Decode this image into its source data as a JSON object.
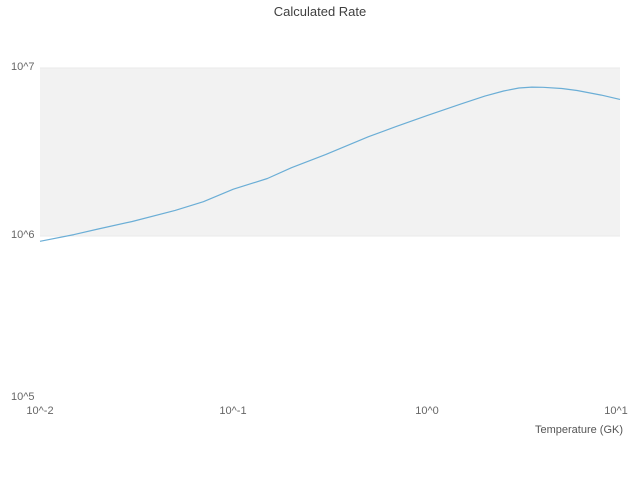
{
  "chart_data": {
    "type": "line",
    "title": "Calculated Rate",
    "xlabel": "Temperature (GK)",
    "ylabel": "",
    "x_scale": "log",
    "y_scale": "log",
    "xlim": [
      0.01,
      10
    ],
    "ylim": [
      100000.0,
      10000000.0
    ],
    "x_ticks": [
      "10^-2",
      "10^-1",
      "10^0",
      "10^1"
    ],
    "y_ticks": [
      "10^5",
      "10^6",
      "10^7"
    ],
    "grid": "off",
    "legend": "none",
    "band": {
      "y_from": 1000000.0,
      "y_to": 10000000.0,
      "color": "#f2f2f2",
      "edge_color": "#e9e9e9"
    },
    "series": [
      {
        "name": "calculated-rate",
        "color": "#6baed6",
        "x": [
          0.01,
          0.015,
          0.02,
          0.03,
          0.05,
          0.07,
          0.1,
          0.15,
          0.2,
          0.3,
          0.5,
          0.7,
          1.0,
          1.5,
          2.0,
          2.5,
          3.0,
          3.5,
          4.0,
          5.0,
          6.0,
          8.0,
          10.0
        ],
        "y": [
          930000.0,
          1020000.0,
          1100000.0,
          1220000.0,
          1420000.0,
          1600000.0,
          1900000.0,
          2200000.0,
          2550000.0,
          3050000.0,
          3900000.0,
          4500000.0,
          5200000.0,
          6100000.0,
          6800000.0,
          7300000.0,
          7600000.0,
          7700000.0,
          7680000.0,
          7550000.0,
          7350000.0,
          6900000.0,
          6500000.0
        ]
      }
    ]
  }
}
